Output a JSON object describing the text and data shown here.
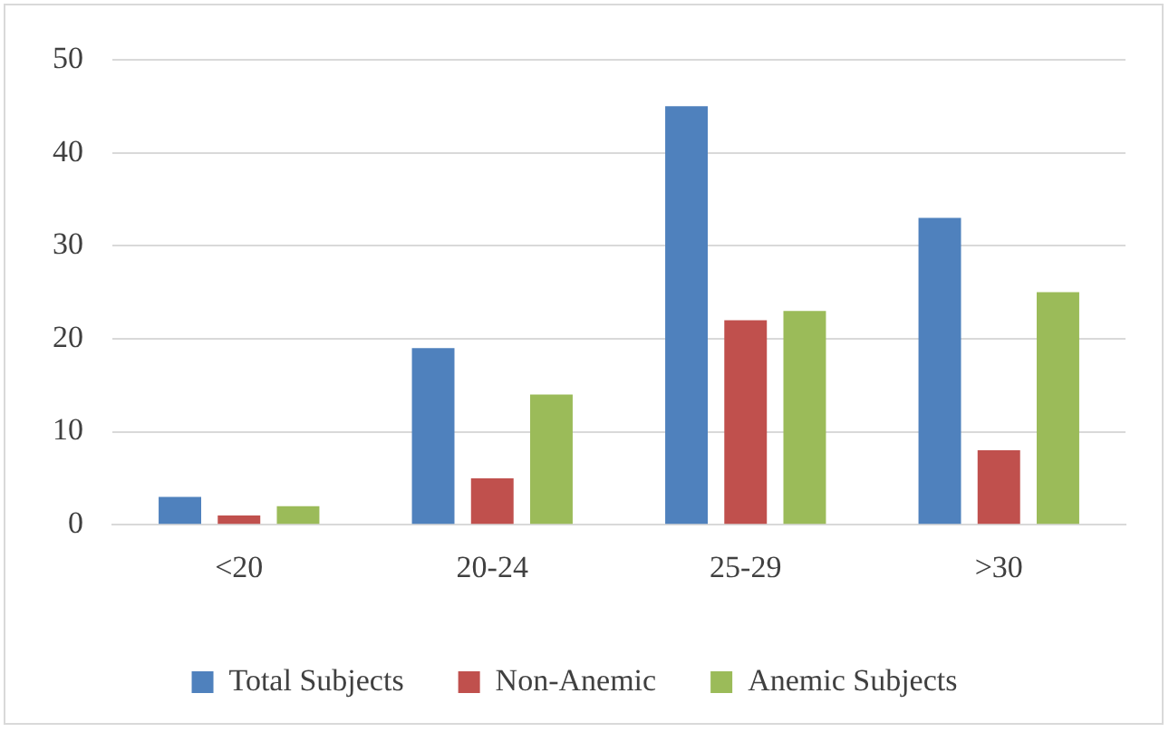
{
  "chart_data": {
    "type": "bar",
    "categories": [
      "<20",
      "20-24",
      "25-29",
      ">30"
    ],
    "series": [
      {
        "name": "Total Subjects",
        "color": "#4f81bd",
        "values": [
          3,
          19,
          45,
          33
        ]
      },
      {
        "name": "Non-Anemic",
        "color": "#c0504d",
        "values": [
          1,
          5,
          22,
          8
        ]
      },
      {
        "name": "Anemic Subjects",
        "color": "#9bbb59",
        "values": [
          2,
          14,
          23,
          25
        ]
      }
    ],
    "ylim": [
      0,
      50
    ],
    "yticks": [
      0,
      10,
      20,
      30,
      40,
      50
    ],
    "grid": "y",
    "legend": "bottom"
  }
}
